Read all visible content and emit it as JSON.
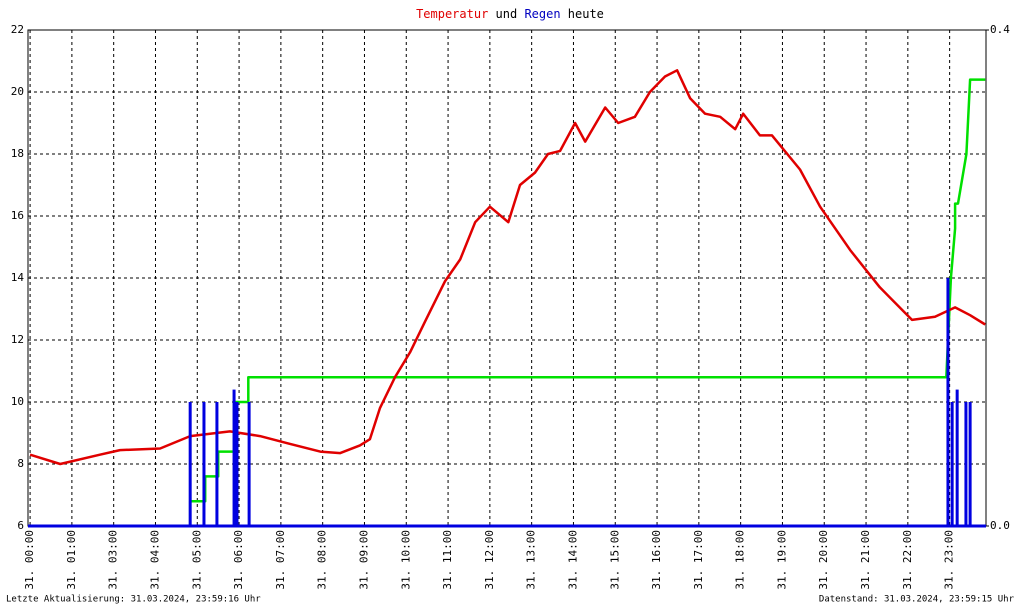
{
  "chart_data": {
    "type": "line",
    "title_parts": [
      {
        "text": "Temperatur",
        "color": "#e00000"
      },
      {
        "text": " und ",
        "color": "#000000"
      },
      {
        "text": "Regen",
        "color": "#0000c0"
      },
      {
        "text": " heute",
        "color": "#000000"
      }
    ],
    "xlim": [
      -0.05,
      22.87
    ],
    "xticks": [
      {
        "value": 0,
        "label": "31. 00:00"
      },
      {
        "value": 1,
        "label": "31. 01:00"
      },
      {
        "value": 2,
        "label": "31. 03:00"
      },
      {
        "value": 3,
        "label": "31. 04:00"
      },
      {
        "value": 4,
        "label": "31. 05:00"
      },
      {
        "value": 5,
        "label": "31. 06:00"
      },
      {
        "value": 6,
        "label": "31. 07:00"
      },
      {
        "value": 7,
        "label": "31. 08:00"
      },
      {
        "value": 8,
        "label": "31. 09:00"
      },
      {
        "value": 9,
        "label": "31. 10:00"
      },
      {
        "value": 10,
        "label": "31. 11:00"
      },
      {
        "value": 11,
        "label": "31. 12:00"
      },
      {
        "value": 12,
        "label": "31. 13:00"
      },
      {
        "value": 13,
        "label": "31. 14:00"
      },
      {
        "value": 14,
        "label": "31. 15:00"
      },
      {
        "value": 15,
        "label": "31. 16:00"
      },
      {
        "value": 16,
        "label": "31. 17:00"
      },
      {
        "value": 17,
        "label": "31. 18:00"
      },
      {
        "value": 18,
        "label": "31. 19:00"
      },
      {
        "value": 19,
        "label": "31. 20:00"
      },
      {
        "value": 20,
        "label": "31. 21:00"
      },
      {
        "value": 21,
        "label": "31. 22:00"
      },
      {
        "value": 22,
        "label": "31. 23:00"
      }
    ],
    "ylim": [
      6,
      22
    ],
    "yticks": [
      6,
      8,
      10,
      12,
      14,
      16,
      18,
      20,
      22
    ],
    "y2lim": [
      0,
      0.4
    ],
    "y2ticks": [
      {
        "value": 0,
        "label": "0.0"
      },
      {
        "value": 0.4,
        "label": "0.4"
      }
    ],
    "grid": true,
    "series": [
      {
        "color": "#00e000",
        "axis": "y2",
        "x": [
          -0.05,
          3.83,
          3.83,
          4.19,
          4.19,
          4.5,
          4.5,
          4.88,
          4.88,
          5.22,
          5.22,
          21.92,
          22.03,
          22.13,
          22.13,
          22.2,
          22.4,
          22.49,
          22.85
        ],
        "values": [
          0,
          0,
          0.02,
          0.02,
          0.04,
          0.04,
          0.06,
          0.06,
          0.1,
          0.1,
          0.12,
          0.12,
          0.2,
          0.24,
          0.26,
          0.26,
          0.3,
          0.36,
          0.36
        ]
      },
      {
        "color": "#e00000",
        "x": [
          0,
          0.72,
          1.67,
          2.15,
          3.11,
          3.83,
          4.78,
          5.5,
          6.22,
          6.94,
          7.42,
          7.89,
          8.13,
          8.37,
          8.73,
          9.09,
          9.45,
          9.93,
          10.29,
          10.65,
          11.0,
          11.44,
          11.72,
          12.08,
          12.39,
          12.68,
          13.04,
          13.28,
          13.76,
          14.07,
          14.47,
          14.83,
          15.19,
          15.48,
          15.79,
          16.15,
          16.51,
          16.87,
          17.06,
          17.46,
          17.75,
          18.42,
          18.9,
          19.62,
          20.33,
          21.1,
          21.65,
          22.13,
          22.49,
          22.85
        ],
        "values": [
          8.3,
          8.0,
          8.3,
          8.45,
          8.5,
          8.9,
          9.05,
          8.9,
          8.65,
          8.4,
          8.35,
          8.6,
          8.8,
          9.8,
          10.8,
          11.6,
          12.6,
          13.9,
          14.6,
          15.8,
          16.3,
          15.8,
          17.0,
          17.4,
          18.0,
          18.1,
          19.0,
          18.4,
          19.5,
          19.0,
          19.2,
          20.0,
          20.5,
          20.7,
          19.8,
          19.3,
          19.2,
          18.8,
          19.3,
          18.6,
          18.6,
          17.5,
          16.3,
          14.9,
          13.7,
          12.65,
          12.75,
          13.05,
          12.8,
          12.5
        ]
      },
      {
        "color": "#0000e0",
        "axis": "y2",
        "kind": "bar",
        "x": [
          3.83,
          4.16,
          4.47,
          4.88,
          4.95,
          5.24,
          21.96,
          22.06,
          22.18,
          22.39,
          22.49
        ],
        "values": [
          0.1,
          0.1,
          0.1,
          0.11,
          0.1,
          0.1,
          0.2,
          0.1,
          0.11,
          0.1,
          0.1
        ]
      }
    ],
    "footer_left": "Letzte Aktualisierung: 31.03.2024, 23:59:16 Uhr",
    "footer_right": "Datenstand: 31.03.2024, 23:59:15 Uhr"
  }
}
